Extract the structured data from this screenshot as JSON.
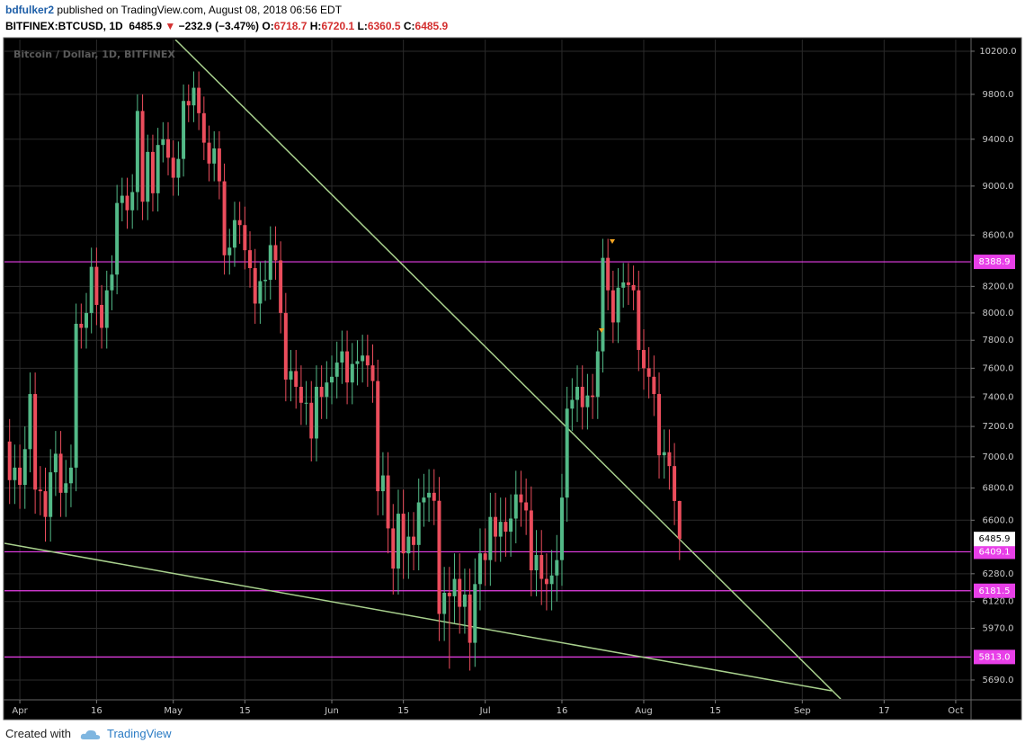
{
  "header": {
    "user": "bdfulker2",
    "published": "published on TradingView.com, August 08, 2018 06:56 EDT",
    "symbol": "BITFINEX:BTCUSD, 1D",
    "direction": "▼",
    "change": "−232.9 (−3.47%)",
    "o": "O:",
    "h": "H:",
    "l": "L:",
    "c": "C:"
  },
  "footer": {
    "created": "Created with",
    "brand": "TradingView"
  },
  "chart_data": {
    "type": "candlestick",
    "watermark": "Bitcoin / Dollar, 1D, BITFINEX",
    "log": true,
    "grid": true,
    "up_color": "#53b987",
    "down_color": "#eb4d5c",
    "hline_color": "#e83fe8",
    "xlim": [
      "2018-03-29",
      "2018-10-04"
    ],
    "ylim": [
      5591,
      10311
    ],
    "xticks": [
      {
        "value": "2018-04-01",
        "label": "Apr"
      },
      {
        "value": "2018-04-16",
        "label": "16"
      },
      {
        "value": "2018-05-01",
        "label": "May"
      },
      {
        "value": "2018-05-15",
        "label": "15"
      },
      {
        "value": "2018-06-01",
        "label": "Jun"
      },
      {
        "value": "2018-06-15",
        "label": "15"
      },
      {
        "value": "2018-07-01",
        "label": "Jul"
      },
      {
        "value": "2018-07-16",
        "label": "16"
      },
      {
        "value": "2018-08-01",
        "label": "Aug"
      },
      {
        "value": "2018-08-15",
        "label": "15"
      },
      {
        "value": "2018-09-01",
        "label": "Sep"
      },
      {
        "value": "2018-09-17",
        "label": "17"
      },
      {
        "value": "2018-10-01",
        "label": "Oct"
      }
    ],
    "yticks": [
      {
        "value": 5690,
        "label": "5690.0"
      },
      {
        "value": 5970,
        "label": "5970.0"
      },
      {
        "value": 6120,
        "label": "6120.0"
      },
      {
        "value": 6280,
        "label": "6280.0"
      },
      {
        "value": 6600,
        "label": "6600.0"
      },
      {
        "value": 6800,
        "label": "6800.0"
      },
      {
        "value": 7000,
        "label": "7000.0"
      },
      {
        "value": 7200,
        "label": "7200.0"
      },
      {
        "value": 7400,
        "label": "7400.0"
      },
      {
        "value": 7600,
        "label": "7600.0"
      },
      {
        "value": 7800,
        "label": "7800.0"
      },
      {
        "value": 8000,
        "label": "8000.0"
      },
      {
        "value": 8200,
        "label": "8200.0"
      },
      {
        "value": 8600,
        "label": "8600.0"
      },
      {
        "value": 9000,
        "label": "9000.0"
      },
      {
        "value": 9400,
        "label": "9400.0"
      },
      {
        "value": 9800,
        "label": "9800.0"
      },
      {
        "value": 10200,
        "label": "10200.0"
      }
    ],
    "hlines": [
      8388.9,
      6409.1,
      6181.5,
      {
        "value": 5813,
        "label": "5813.0"
      }
    ],
    "x": [
      "2018-03-30",
      "2018-03-31",
      "2018-04-01",
      "2018-04-02",
      "2018-04-03",
      "2018-04-04",
      "2018-04-05",
      "2018-04-06",
      "2018-04-07",
      "2018-04-08",
      "2018-04-09",
      "2018-04-10",
      "2018-04-11",
      "2018-04-12",
      "2018-04-13",
      "2018-04-14",
      "2018-04-15",
      "2018-04-16",
      "2018-04-17",
      "2018-04-18",
      "2018-04-19",
      "2018-04-20",
      "2018-04-21",
      "2018-04-22",
      "2018-04-23",
      "2018-04-24",
      "2018-04-25",
      "2018-04-26",
      "2018-04-27",
      "2018-04-28",
      "2018-04-29",
      "2018-04-30",
      "2018-05-01",
      "2018-05-02",
      "2018-05-03",
      "2018-05-04",
      "2018-05-05",
      "2018-05-06",
      "2018-05-07",
      "2018-05-08",
      "2018-05-09",
      "2018-05-10",
      "2018-05-11",
      "2018-05-12",
      "2018-05-13",
      "2018-05-14",
      "2018-05-15",
      "2018-05-16",
      "2018-05-17",
      "2018-05-18",
      "2018-05-19",
      "2018-05-20",
      "2018-05-21",
      "2018-05-22",
      "2018-05-23",
      "2018-05-24",
      "2018-05-25",
      "2018-05-26",
      "2018-05-27",
      "2018-05-28",
      "2018-05-29",
      "2018-05-30",
      "2018-05-31",
      "2018-06-01",
      "2018-06-02",
      "2018-06-03",
      "2018-06-04",
      "2018-06-05",
      "2018-06-06",
      "2018-06-07",
      "2018-06-08",
      "2018-06-09",
      "2018-06-10",
      "2018-06-11",
      "2018-06-12",
      "2018-06-13",
      "2018-06-14",
      "2018-06-15",
      "2018-06-16",
      "2018-06-17",
      "2018-06-18",
      "2018-06-19",
      "2018-06-20",
      "2018-06-21",
      "2018-06-22",
      "2018-06-23",
      "2018-06-24",
      "2018-06-25",
      "2018-06-26",
      "2018-06-27",
      "2018-06-28",
      "2018-06-29",
      "2018-06-30",
      "2018-07-01",
      "2018-07-02",
      "2018-07-03",
      "2018-07-04",
      "2018-07-05",
      "2018-07-06",
      "2018-07-07",
      "2018-07-08",
      "2018-07-09",
      "2018-07-10",
      "2018-07-11",
      "2018-07-12",
      "2018-07-13",
      "2018-07-14",
      "2018-07-15",
      "2018-07-16",
      "2018-07-17",
      "2018-07-18",
      "2018-07-19",
      "2018-07-20",
      "2018-07-21",
      "2018-07-22",
      "2018-07-23",
      "2018-07-24",
      "2018-07-25",
      "2018-07-26",
      "2018-07-27",
      "2018-07-28",
      "2018-07-29",
      "2018-07-30",
      "2018-07-31",
      "2018-08-01",
      "2018-08-02",
      "2018-08-03",
      "2018-08-04",
      "2018-08-05",
      "2018-08-06",
      "2018-08-07",
      "2018-08-08"
    ],
    "open": [
      7100,
      6850,
      6930,
      6820,
      7050,
      7420,
      6790,
      6780,
      6620,
      6900,
      7020,
      6770,
      6830,
      6930,
      7920,
      7890,
      8000,
      8350,
      8060,
      7890,
      8170,
      8290,
      8860,
      8920,
      8800,
      8950,
      9650,
      8870,
      9290,
      8940,
      9350,
      9400,
      9240,
      9070,
      9230,
      9740,
      9700,
      9860,
      9630,
      9370,
      9190,
      9320,
      9040,
      8440,
      8500,
      8720,
      8680,
      8480,
      8340,
      8070,
      8240,
      8250,
      8520,
      8400,
      8000,
      7520,
      7580,
      7470,
      7360,
      7360,
      7120,
      7470,
      7400,
      7500,
      7540,
      7640,
      7720,
      7500,
      7630,
      7650,
      7690,
      7620,
      7510,
      6780,
      6880,
      6550,
      6310,
      6640,
      6400,
      6500,
      6450,
      6710,
      6740,
      6770,
      6720,
      6050,
      6170,
      6150,
      6250,
      6090,
      6160,
      5890,
      6220,
      6400,
      6360,
      6620,
      6500,
      6590,
      6530,
      6610,
      6760,
      6710,
      6660,
      6300,
      6390,
      6250,
      6220,
      6270,
      6360,
      6740,
      7320,
      7380,
      7470,
      7330,
      7410,
      7400,
      7720,
      8420,
      8170,
      7930,
      8190,
      8230,
      8210,
      8170,
      7730,
      7600,
      7540,
      7420,
      7010,
      7030,
      6940,
      6718.7
    ],
    "high": [
      7250,
      7080,
      7080,
      7200,
      7570,
      7570,
      6940,
      6930,
      7050,
      7170,
      7170,
      6980,
      7080,
      8070,
      8070,
      8150,
      8500,
      8500,
      8210,
      8320,
      8440,
      9010,
      9070,
      9070,
      9100,
      9800,
      9800,
      9440,
      9440,
      9500,
      9550,
      9550,
      9390,
      9380,
      9890,
      9890,
      10010,
      10010,
      9780,
      9520,
      9470,
      9470,
      9190,
      8650,
      8870,
      8870,
      8830,
      8630,
      8490,
      8390,
      8400,
      8670,
      8670,
      8550,
      8150,
      7730,
      7730,
      7620,
      7510,
      7510,
      7620,
      7620,
      7650,
      7690,
      7790,
      7870,
      7870,
      7780,
      7800,
      7840,
      7840,
      7770,
      7660,
      7030,
      7030,
      6700,
      6790,
      6790,
      6650,
      6650,
      6860,
      6890,
      6920,
      6920,
      6870,
      6320,
      6320,
      6400,
      6400,
      6310,
      6310,
      6370,
      6550,
      6550,
      6770,
      6770,
      6740,
      6740,
      6760,
      6910,
      6910,
      6860,
      6810,
      6540,
      6540,
      6400,
      6420,
      6510,
      6890,
      7470,
      7530,
      7620,
      7620,
      7560,
      7560,
      7870,
      8570,
      8570,
      8320,
      8340,
      8380,
      8380,
      8360,
      8320,
      7880,
      7750,
      7690,
      7570,
      7180,
      7180,
      7090,
      6720.1
    ],
    "low": [
      6700,
      6700,
      6670,
      6670,
      6900,
      6640,
      6630,
      6470,
      6470,
      6750,
      6620,
      6620,
      6680,
      6780,
      7740,
      7740,
      7850,
      7910,
      7740,
      7740,
      8020,
      8140,
      8710,
      8650,
      8650,
      8800,
      8720,
      8720,
      8790,
      8790,
      9200,
      9090,
      8920,
      8920,
      9080,
      9550,
      9550,
      9480,
      9220,
      9040,
      9040,
      8890,
      8290,
      8290,
      8350,
      8530,
      8330,
      8190,
      7920,
      7920,
      8090,
      8100,
      8250,
      7850,
      7370,
      7370,
      7320,
      7210,
      7210,
      6970,
      6970,
      7250,
      7250,
      7350,
      7390,
      7490,
      7350,
      7350,
      7480,
      7500,
      7470,
      7360,
      6630,
      6630,
      6400,
      6160,
      6160,
      6250,
      6250,
      6300,
      6300,
      6560,
      6590,
      6570,
      5900,
      5900,
      5750,
      6000,
      5940,
      5940,
      5740,
      5760,
      6070,
      6210,
      6210,
      6350,
      6350,
      6380,
      6380,
      6460,
      6560,
      6510,
      6150,
      6150,
      6100,
      6070,
      6070,
      6120,
      6210,
      6590,
      7170,
      7230,
      7180,
      7180,
      7250,
      7250,
      7570,
      8020,
      7780,
      7780,
      8040,
      8060,
      8020,
      7580,
      7450,
      7390,
      7270,
      6860,
      6860,
      6790,
      6570,
      6360.5
    ],
    "close": [
      6850,
      6930,
      6820,
      7050,
      7420,
      6790,
      6780,
      6620,
      6900,
      7020,
      6770,
      6830,
      6930,
      7920,
      7890,
      8000,
      8350,
      8060,
      7890,
      8170,
      8290,
      8860,
      8920,
      8800,
      8950,
      9650,
      8870,
      9290,
      8940,
      9350,
      9400,
      9240,
      9070,
      9230,
      9740,
      9700,
      9860,
      9630,
      9370,
      9190,
      9320,
      9040,
      8440,
      8500,
      8720,
      8680,
      8480,
      8340,
      8070,
      8240,
      8250,
      8520,
      8400,
      8000,
      7520,
      7580,
      7470,
      7360,
      7360,
      7120,
      7470,
      7400,
      7500,
      7540,
      7640,
      7720,
      7500,
      7630,
      7650,
      7690,
      7620,
      7510,
      6780,
      6880,
      6550,
      6310,
      6640,
      6400,
      6500,
      6450,
      6710,
      6740,
      6770,
      6720,
      6050,
      6170,
      6150,
      6250,
      6090,
      6160,
      5890,
      6220,
      6400,
      6360,
      6620,
      6500,
      6590,
      6530,
      6610,
      6760,
      6710,
      6660,
      6300,
      6390,
      6250,
      6220,
      6270,
      6360,
      6740,
      7320,
      7380,
      7470,
      7330,
      7410,
      7400,
      7720,
      8420,
      8170,
      7930,
      8190,
      8230,
      8210,
      8170,
      7730,
      7600,
      7540,
      7420,
      7010,
      7030,
      6940,
      6718.7,
      6485.9
    ]
  }
}
